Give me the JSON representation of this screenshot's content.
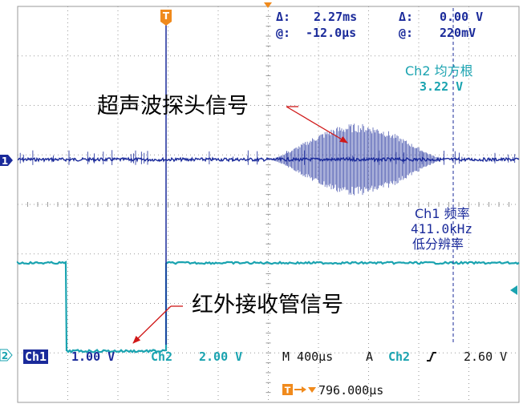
{
  "cursor_readout": {
    "row1": {
      "delta_time_label": "Δ:",
      "delta_time_value": "2.27ms",
      "delta_volt_label": "Δ:",
      "delta_volt_value": "0.00 V"
    },
    "row2": {
      "at_time_label": "@:",
      "at_time_value": "-12.0µs",
      "at_volt_label": "@:",
      "at_volt_value": "220mV"
    }
  },
  "measurements": {
    "ch2_rms": {
      "title": "Ch2 均方根",
      "value": "3.22 V"
    },
    "ch1_freq": {
      "title": "Ch1 频率",
      "value": "411.0kHz",
      "note": "低分辨率"
    }
  },
  "annotations": {
    "ultrasonic": "超声波探头信号",
    "infrared": "红外接收管信号"
  },
  "markers": {
    "trigger_letter": "T",
    "ch1_marker": "1",
    "ch2_marker": "2"
  },
  "status_bar": {
    "ch1_label": "Ch1",
    "ch1_scale": "1.00 V",
    "ch2_label": "Ch2",
    "ch2_scale": "2.00 V",
    "timebase": "M 400µs",
    "trigger_mode": "A",
    "trigger_source": "Ch2",
    "trigger_slope_icon": "rising-edge-icon",
    "trigger_level": "2.60 V",
    "trigger_position_icon": "trigger-position-icon",
    "trigger_position": "796.000µs"
  },
  "colors": {
    "ch1": "#1a2a9a",
    "ch2": "#1aa3b0",
    "trigger": "#f08a1c",
    "grid": "#9a9a9a",
    "annotation_arrow": "#d01818"
  }
}
